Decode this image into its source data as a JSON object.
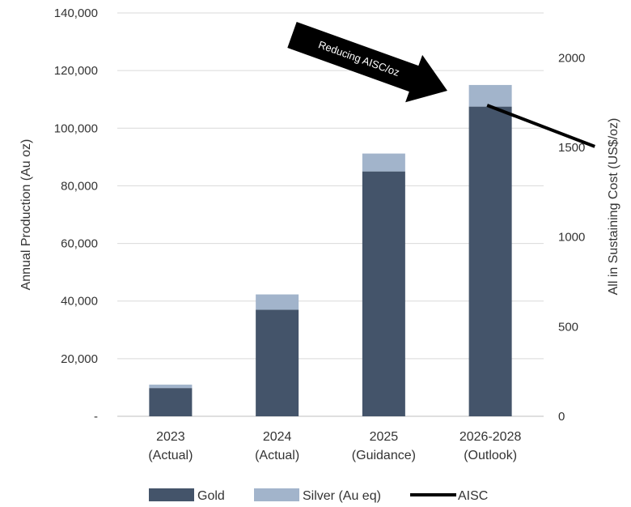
{
  "chart_data": {
    "type": "bar",
    "stacked": true,
    "categories": [
      [
        "2023",
        "(Actual)"
      ],
      [
        "2024",
        "(Actual)"
      ],
      [
        "2025",
        "(Guidance)"
      ],
      [
        "2026-2028",
        "(Outlook)"
      ]
    ],
    "series": [
      {
        "name": "Gold",
        "values": [
          9800,
          37000,
          85000,
          107500
        ],
        "color": "#44546a"
      },
      {
        "name": "Silver (Au eq)",
        "values": [
          1200,
          5300,
          6200,
          7500
        ],
        "color": "#a2b4cb"
      }
    ],
    "line_series": {
      "name": "AISC",
      "color": "#000000",
      "points": [
        {
          "x_pos": 2.97,
          "y": 1735
        },
        {
          "x_pos": 3.98,
          "y": 1505
        }
      ]
    },
    "ylabel": "Annual Production (Au oz)",
    "y2label": "All in Sustaining Cost (US$/oz)",
    "ylim": [
      0,
      140000
    ],
    "y2lim": [
      0,
      2250
    ],
    "y_ticks": [
      {
        "value": 0,
        "label": "-"
      },
      {
        "value": 20000,
        "label": "20,000"
      },
      {
        "value": 40000,
        "label": "40,000"
      },
      {
        "value": 60000,
        "label": "60,000"
      },
      {
        "value": 80000,
        "label": "80,000"
      },
      {
        "value": 100000,
        "label": "100,000"
      },
      {
        "value": 120000,
        "label": "120,000"
      },
      {
        "value": 140000,
        "label": "140,000"
      }
    ],
    "y2_ticks": [
      {
        "value": 0,
        "label": "0"
      },
      {
        "value": 500,
        "label": "500"
      },
      {
        "value": 1000,
        "label": "1000"
      },
      {
        "value": 1500,
        "label": "1500"
      },
      {
        "value": 2000,
        "label": "2000"
      }
    ],
    "grid": true,
    "legend_position": "bottom",
    "annotation": {
      "text": "Reducing AISC/oz",
      "color": "#000000",
      "text_color": "#ffffff"
    }
  }
}
